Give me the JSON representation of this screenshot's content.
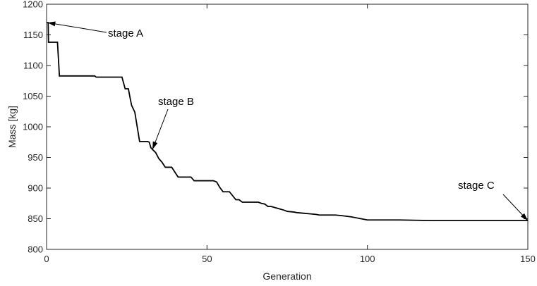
{
  "chart_data": {
    "type": "line",
    "title": "",
    "xlabel": "Generation",
    "ylabel": "Mass [kg]",
    "xlim": [
      0,
      150
    ],
    "ylim": [
      800,
      1200
    ],
    "xticks": [
      0,
      50,
      100,
      150
    ],
    "yticks": [
      800,
      850,
      900,
      950,
      1000,
      1050,
      1100,
      1150,
      1200
    ],
    "grid": false,
    "legend": "none",
    "series": [
      {
        "color": "#000000",
        "points": [
          [
            0,
            1170
          ],
          [
            0.5,
            1170
          ],
          [
            0.6,
            1138
          ],
          [
            3.4,
            1138
          ],
          [
            4,
            1083
          ],
          [
            15,
            1083
          ],
          [
            15.5,
            1081
          ],
          [
            23.5,
            1081
          ],
          [
            24.5,
            1062
          ],
          [
            25.5,
            1062
          ],
          [
            26,
            1048
          ],
          [
            26.5,
            1035
          ],
          [
            27.5,
            1024
          ],
          [
            29,
            976
          ],
          [
            31.5,
            976
          ],
          [
            32,
            975
          ],
          [
            32.5,
            966
          ],
          [
            33,
            963
          ],
          [
            34,
            958
          ],
          [
            35,
            948
          ],
          [
            36,
            942
          ],
          [
            37,
            934
          ],
          [
            39,
            934
          ],
          [
            40,
            926
          ],
          [
            41,
            918
          ],
          [
            45,
            918
          ],
          [
            46,
            912
          ],
          [
            52,
            912
          ],
          [
            53,
            910
          ],
          [
            54,
            901
          ],
          [
            55,
            894
          ],
          [
            57,
            894
          ],
          [
            59,
            881
          ],
          [
            60,
            881
          ],
          [
            61,
            877
          ],
          [
            66,
            877
          ],
          [
            67,
            875
          ],
          [
            68,
            874
          ],
          [
            69,
            870
          ],
          [
            70,
            870
          ],
          [
            72,
            867
          ],
          [
            74,
            864
          ],
          [
            75,
            862
          ],
          [
            77,
            861
          ],
          [
            78,
            860
          ],
          [
            80,
            859
          ],
          [
            82,
            858
          ],
          [
            84,
            857
          ],
          [
            85,
            856
          ],
          [
            90,
            856
          ],
          [
            92,
            855
          ],
          [
            95,
            853
          ],
          [
            98,
            850
          ],
          [
            100,
            848
          ],
          [
            110,
            848
          ],
          [
            120,
            847
          ],
          [
            150,
            847
          ]
        ]
      }
    ],
    "annotations": [
      {
        "text": "stage A",
        "point": [
          0.3,
          1170
        ]
      },
      {
        "text": "stage B",
        "point": [
          33,
          963
        ]
      },
      {
        "text": "stage C",
        "point": [
          150,
          847
        ]
      }
    ]
  }
}
